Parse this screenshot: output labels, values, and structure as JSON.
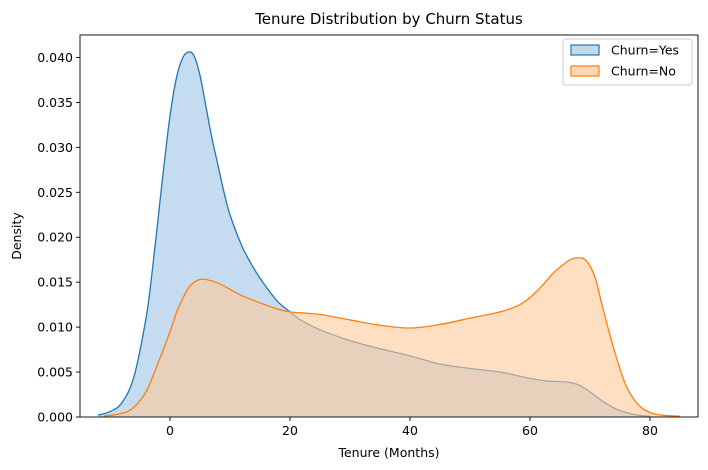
{
  "chart_data": {
    "type": "area",
    "title": "Tenure Distribution by Churn Status",
    "xlabel": "Tenure (Months)",
    "ylabel": "Density",
    "xlim": [
      -15,
      88
    ],
    "ylim": [
      0,
      0.0425
    ],
    "xticks": [
      0,
      20,
      40,
      60,
      80
    ],
    "xtick_labels": [
      "0",
      "20",
      "40",
      "60",
      "80"
    ],
    "yticks": [
      0,
      0.005,
      0.01,
      0.015,
      0.02,
      0.025,
      0.03,
      0.035,
      0.04
    ],
    "ytick_labels": [
      "0.000",
      "0.005",
      "0.010",
      "0.015",
      "0.020",
      "0.025",
      "0.030",
      "0.035",
      "0.040"
    ],
    "grid": false,
    "legend_position": "top-right",
    "series": [
      {
        "name": "Churn=Yes",
        "color": "#1f77b4",
        "fill": "#a6c8e6",
        "x": [
          -12,
          -10,
          -8,
          -6,
          -4,
          -3,
          -2,
          -1,
          0,
          1,
          2,
          3,
          4,
          5,
          6,
          7,
          8,
          9,
          10,
          12,
          14,
          16,
          18,
          20,
          22,
          25,
          30,
          35,
          40,
          45,
          50,
          55,
          60,
          63,
          66,
          68,
          70,
          72,
          74,
          76,
          78,
          80
        ],
        "values": [
          0.0002,
          0.0006,
          0.0016,
          0.0045,
          0.011,
          0.016,
          0.022,
          0.028,
          0.0335,
          0.0375,
          0.0398,
          0.0406,
          0.0402,
          0.038,
          0.0345,
          0.031,
          0.028,
          0.025,
          0.0225,
          0.019,
          0.0165,
          0.0145,
          0.0128,
          0.0117,
          0.0107,
          0.0097,
          0.0085,
          0.0076,
          0.0068,
          0.0059,
          0.0054,
          0.005,
          0.0043,
          0.004,
          0.0039,
          0.0036,
          0.0028,
          0.0018,
          0.001,
          0.0005,
          0.0002,
          0.0001
        ]
      },
      {
        "name": "Churn=No",
        "color": "#ff7f0e",
        "fill": "#ffc999",
        "x": [
          -11,
          -8,
          -6,
          -4,
          -2,
          0,
          1,
          2,
          3,
          4,
          5,
          6,
          8,
          10,
          12,
          15,
          18,
          20,
          25,
          30,
          35,
          40,
          45,
          50,
          55,
          58,
          60,
          62,
          64,
          66,
          67,
          68,
          69,
          70,
          71,
          72,
          74,
          76,
          78,
          80,
          82,
          85
        ],
        "values": [
          0.0001,
          0.0004,
          0.0011,
          0.0028,
          0.006,
          0.0095,
          0.0115,
          0.013,
          0.0143,
          0.015,
          0.0153,
          0.0153,
          0.0149,
          0.0142,
          0.0135,
          0.0127,
          0.012,
          0.0117,
          0.0114,
          0.0108,
          0.0102,
          0.0099,
          0.0103,
          0.011,
          0.0117,
          0.0124,
          0.0133,
          0.0146,
          0.0161,
          0.0172,
          0.0176,
          0.0177,
          0.0176,
          0.0168,
          0.0152,
          0.0125,
          0.0075,
          0.0035,
          0.0014,
          0.0005,
          0.0002,
          0.0001
        ]
      }
    ]
  }
}
